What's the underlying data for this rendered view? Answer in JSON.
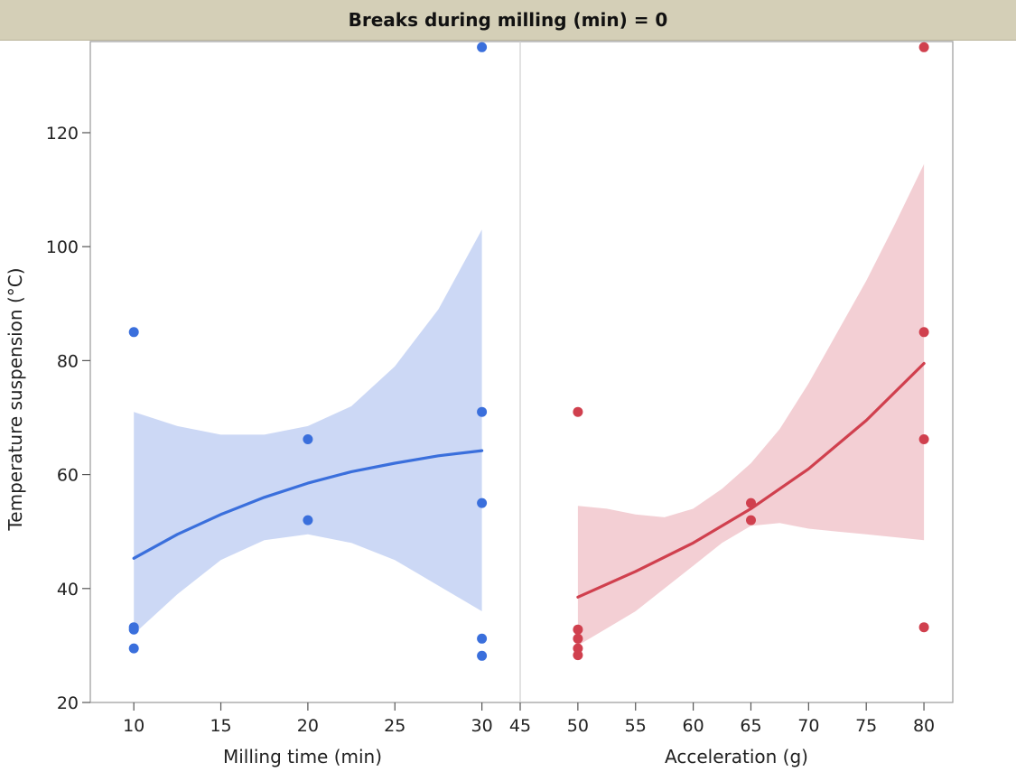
{
  "header": {
    "title": "Breaks during milling (min) = 0"
  },
  "chart_data": {
    "type": "scatter",
    "title": "Breaks during milling (min) = 0",
    "ylabel": "Temperature suspension (°C)",
    "ylim": [
      20,
      136
    ],
    "y_ticks": [
      20,
      40,
      60,
      80,
      100,
      120
    ],
    "panels": [
      {
        "xlabel": "Milling time (min)",
        "xlim": [
          7.5,
          32.2
        ],
        "x_ticks": [
          10,
          15,
          20,
          25,
          30
        ],
        "color": "#3a6fdc",
        "band_color": "#c9d6f4",
        "points": [
          {
            "x": 10,
            "y": 85
          },
          {
            "x": 10,
            "y": 33.2
          },
          {
            "x": 10,
            "y": 32.8
          },
          {
            "x": 10,
            "y": 29.5
          },
          {
            "x": 20,
            "y": 66.2
          },
          {
            "x": 20,
            "y": 52
          },
          {
            "x": 30,
            "y": 135
          },
          {
            "x": 30,
            "y": 71
          },
          {
            "x": 30,
            "y": 55
          },
          {
            "x": 30,
            "y": 31.2
          },
          {
            "x": 30,
            "y": 28.2
          }
        ],
        "fit": {
          "x": [
            10,
            12.5,
            15,
            17.5,
            20,
            22.5,
            25,
            27.5,
            30
          ],
          "y": [
            45.3,
            49.5,
            53.0,
            56.0,
            58.5,
            60.5,
            62.0,
            63.3,
            64.2
          ]
        },
        "band": {
          "x": [
            10,
            12.5,
            15,
            17.5,
            20,
            22.5,
            25,
            27.5,
            30
          ],
          "upper": [
            71,
            68.5,
            67,
            67,
            68.5,
            72,
            79,
            89,
            103
          ],
          "lower": [
            32,
            39,
            45,
            48.5,
            49.5,
            48,
            45,
            40.5,
            36
          ]
        }
      },
      {
        "xlabel": "Acceleration (g)",
        "xlim": [
          45,
          82.5
        ],
        "x_ticks": [
          45,
          50,
          55,
          60,
          65,
          70,
          75,
          80
        ],
        "color": "#d0404e",
        "band_color": "#f2ccd2",
        "points": [
          {
            "x": 50,
            "y": 71
          },
          {
            "x": 50,
            "y": 32.8
          },
          {
            "x": 50,
            "y": 31.2
          },
          {
            "x": 50,
            "y": 29.5
          },
          {
            "x": 50,
            "y": 28.3
          },
          {
            "x": 65,
            "y": 55
          },
          {
            "x": 65,
            "y": 52
          },
          {
            "x": 80,
            "y": 135
          },
          {
            "x": 80,
            "y": 85
          },
          {
            "x": 80,
            "y": 66.2
          },
          {
            "x": 80,
            "y": 33.2
          }
        ],
        "fit": {
          "x": [
            50,
            55,
            60,
            65,
            70,
            75,
            80
          ],
          "y": [
            38.5,
            43,
            48,
            54,
            61,
            69.5,
            79.5
          ]
        },
        "band": {
          "x": [
            50,
            52.5,
            55,
            57.5,
            60,
            62.5,
            65,
            67.5,
            70,
            72.5,
            75,
            77.5,
            80
          ],
          "upper": [
            54.5,
            54,
            53,
            52.5,
            54,
            57.5,
            62,
            68,
            76,
            85,
            94,
            104,
            114.5
          ],
          "lower": [
            30,
            33,
            36,
            40,
            44,
            48,
            51,
            51.5,
            50.5,
            50,
            49.5,
            49,
            48.5
          ]
        }
      }
    ]
  }
}
